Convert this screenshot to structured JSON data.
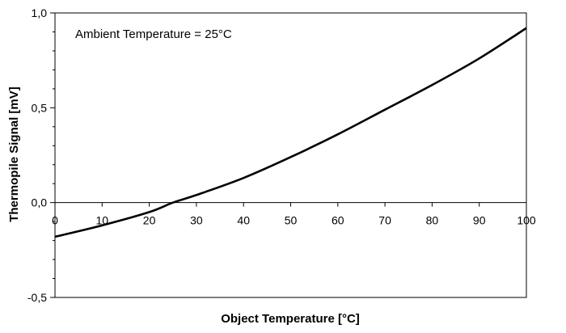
{
  "chart_data": {
    "type": "line",
    "title": "",
    "xlabel": "Object Temperature [°C]",
    "ylabel": "Thermopile Signal [mV]",
    "annotation": "Ambient Temperature = 25°C",
    "xlim": [
      0,
      100
    ],
    "ylim": [
      -0.5,
      1.0
    ],
    "x_ticks": [
      "0",
      "10",
      "20",
      "30",
      "40",
      "50",
      "60",
      "70",
      "80",
      "90",
      "100"
    ],
    "y_ticks": [
      "-0,5",
      "0,0",
      "0,5",
      "1,0"
    ],
    "grid": false,
    "series": [
      {
        "x": [
          0,
          10,
          20,
          25,
          30,
          40,
          50,
          60,
          70,
          80,
          90,
          100
        ],
        "y": [
          -0.18,
          -0.12,
          -0.05,
          0.0,
          0.04,
          0.13,
          0.24,
          0.36,
          0.49,
          0.62,
          0.76,
          0.92
        ],
        "color": "#000000"
      }
    ]
  }
}
